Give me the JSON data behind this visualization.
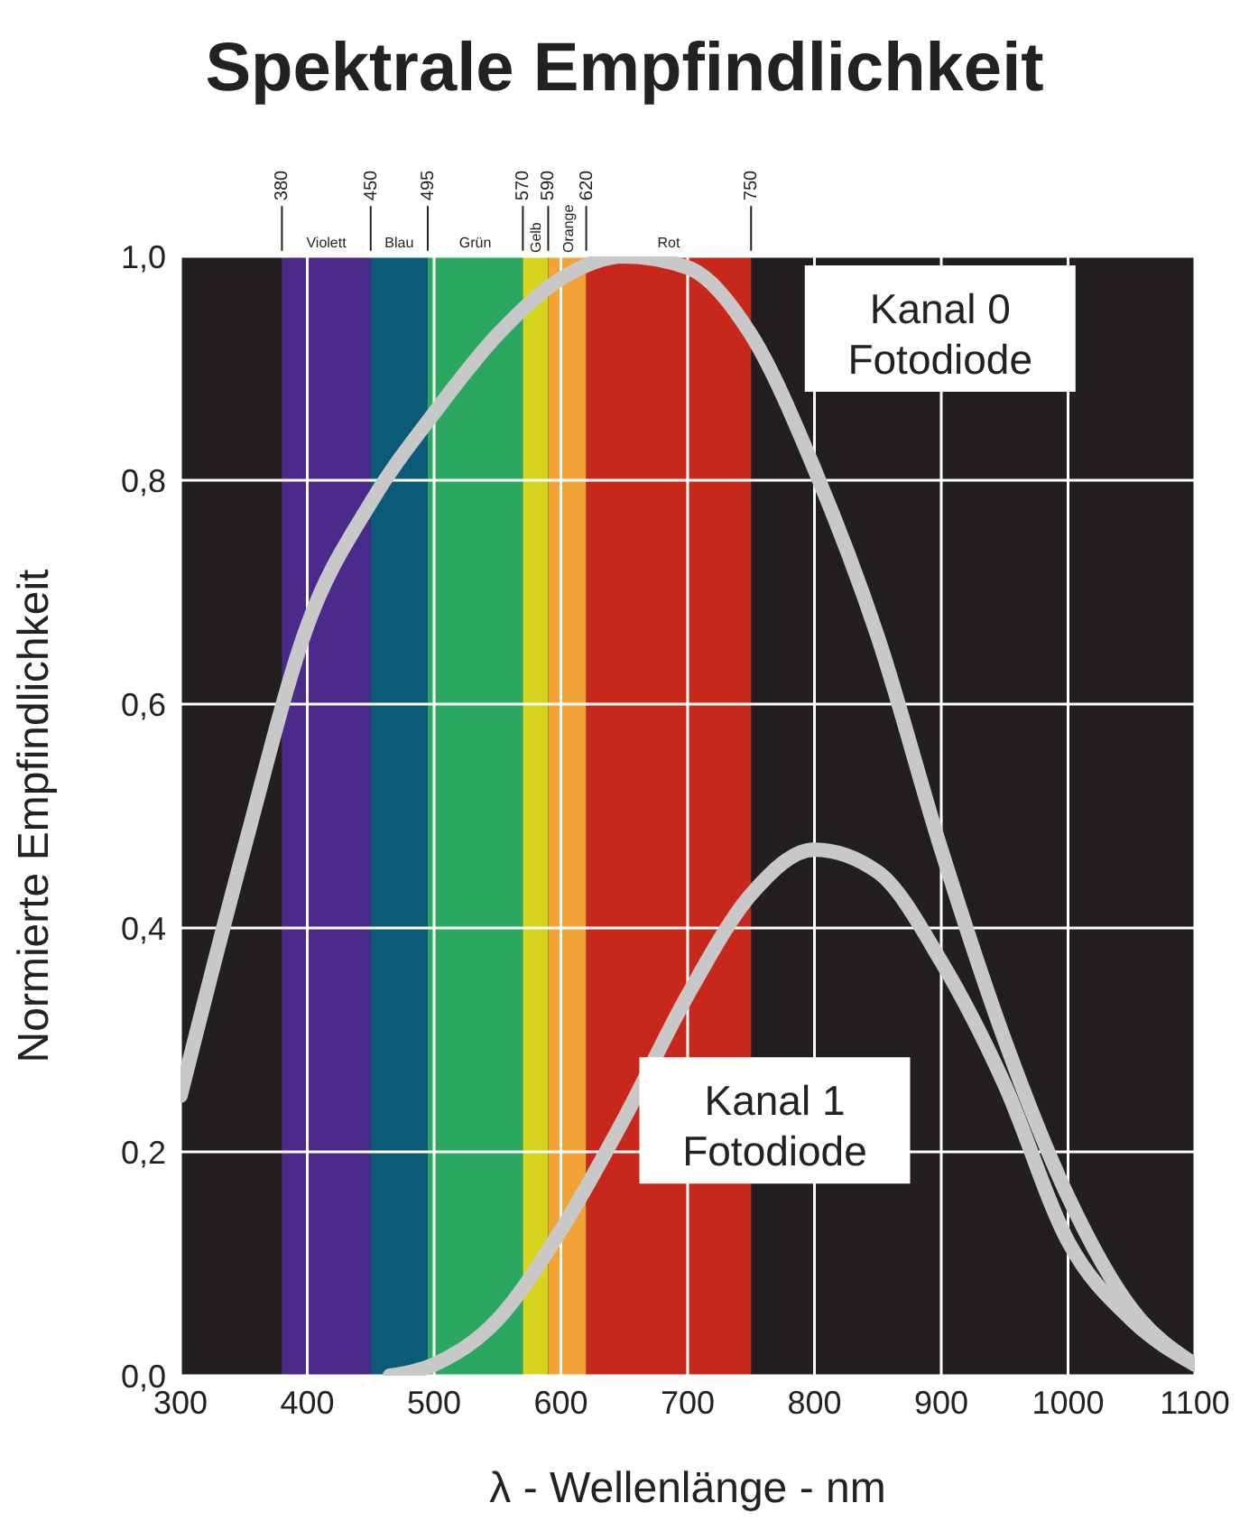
{
  "chart_data": {
    "type": "line",
    "title": "Spektrale Empfindlichkeit",
    "xlabel": "λ - Wellenlänge - nm",
    "ylabel": "Normierte Empfindlichkeit",
    "x": [
      300,
      350,
      400,
      450,
      500,
      550,
      600,
      650,
      700,
      750,
      800,
      850,
      900,
      950,
      1000,
      1050,
      1100
    ],
    "series": [
      {
        "name": "Kanal 0\nFotodiode",
        "color": "#c8c8c8",
        "values": [
          0.25,
          0.47,
          0.67,
          0.78,
          0.86,
          0.93,
          0.98,
          1.0,
          0.99,
          0.93,
          0.81,
          0.66,
          0.47,
          0.3,
          0.16,
          0.06,
          0.01
        ]
      },
      {
        "name": "Kanal 1\nFotodiode",
        "color": "#c8c8c8",
        "x": [
          465,
          500,
          550,
          600,
          650,
          700,
          750,
          800,
          850,
          900,
          950,
          1000,
          1050,
          1100
        ],
        "values": [
          0.0,
          0.01,
          0.05,
          0.13,
          0.23,
          0.34,
          0.43,
          0.47,
          0.45,
          0.37,
          0.26,
          0.12,
          0.05,
          0.01
        ]
      }
    ],
    "xlim": [
      300,
      1100
    ],
    "xticks": [
      300,
      400,
      500,
      600,
      700,
      800,
      900,
      1000,
      1100
    ],
    "ylim": [
      0,
      1
    ],
    "yticks": [
      {
        "value": 0,
        "label": "0,0"
      },
      {
        "value": 0.2,
        "label": "0,2"
      },
      {
        "value": 0.4,
        "label": "0,4"
      },
      {
        "value": 0.6,
        "label": "0,6"
      },
      {
        "value": 0.8,
        "label": "0,8"
      },
      {
        "value": 1,
        "label": "1,0"
      }
    ],
    "x2lim": [
      300,
      1100
    ],
    "x2ticks": [
      380,
      450,
      495,
      570,
      590,
      620,
      750
    ],
    "bands": [
      {
        "axis": "x",
        "from": 380,
        "to": 450,
        "label": "Violett",
        "color": "#4b2a8c"
      },
      {
        "axis": "x",
        "from": 450,
        "to": 495,
        "label": "Blau",
        "color": "#0b5a78"
      },
      {
        "axis": "x",
        "from": 495,
        "to": 570,
        "label": "Grün",
        "color": "#2aa860"
      },
      {
        "axis": "x",
        "from": 570,
        "to": 590,
        "label": "Gelb",
        "color": "#d6d41c"
      },
      {
        "axis": "x",
        "from": 590,
        "to": 620,
        "label": "Orange",
        "color": "#f3a235"
      },
      {
        "axis": "x",
        "from": 620,
        "to": 750,
        "label": "Rot",
        "color": "#c8281c"
      }
    ],
    "grid": true,
    "legend": false,
    "marker": "none",
    "line_style": "solid"
  }
}
